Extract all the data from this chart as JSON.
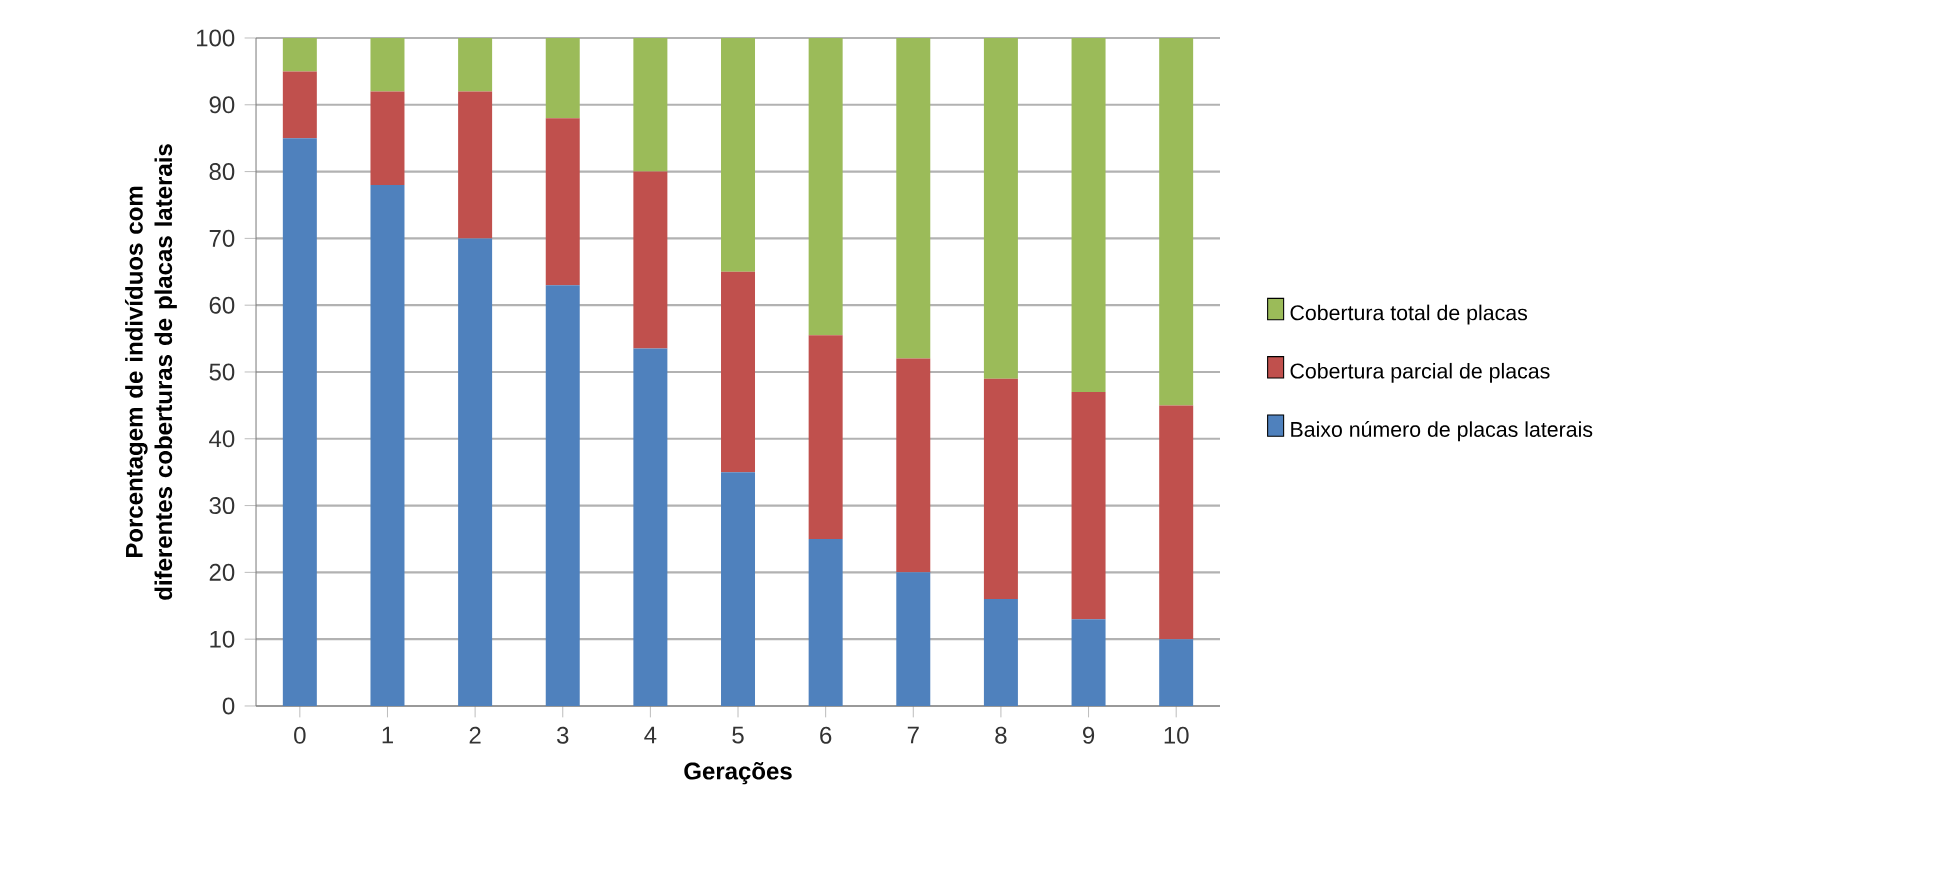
{
  "chart_data": {
    "type": "bar",
    "stacked": true,
    "xlabel": "Gerações",
    "ylabel": "Porcentagem de indivíduos com diferentes coberturas de placas laterais",
    "categories": [
      "0",
      "1",
      "2",
      "3",
      "4",
      "5",
      "6",
      "7",
      "8",
      "9",
      "10"
    ],
    "series": [
      {
        "name": "Baixo número de placas laterais",
        "color": "#4f81bd",
        "values": [
          85,
          78,
          70,
          63,
          53.5,
          35,
          25,
          20,
          16,
          13,
          10
        ]
      },
      {
        "name": "Cobertura parcial de placas",
        "color": "#c0504d",
        "values": [
          10,
          14,
          22,
          25,
          26.5,
          30,
          30.5,
          32,
          33,
          34,
          35
        ]
      },
      {
        "name": "Cobertura total de placas",
        "color": "#9bbb59",
        "values": [
          5,
          8,
          8,
          12,
          20,
          35,
          44.5,
          48,
          51,
          53,
          55
        ]
      }
    ],
    "ylim": [
      0,
      100
    ],
    "yticks": [
      0,
      10,
      20,
      30,
      40,
      50,
      60,
      70,
      80,
      90,
      100
    ],
    "grid": "y",
    "legend": "right"
  }
}
